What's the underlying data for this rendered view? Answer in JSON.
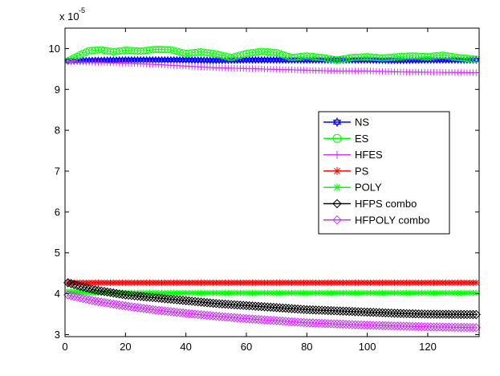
{
  "chart_data": {
    "type": "line",
    "title": "",
    "xlabel": "",
    "ylabel": "",
    "y_multiplier_label": "x 10",
    "y_multiplier_exponent": "-5",
    "xlim": [
      0,
      137
    ],
    "ylim": [
      2.95,
      10.5
    ],
    "x_ticks": [
      0,
      20,
      40,
      60,
      80,
      100,
      120
    ],
    "y_ticks": [
      3,
      4,
      5,
      6,
      7,
      8,
      9,
      10
    ],
    "grid": false,
    "legend_position": "right",
    "x_count": 136,
    "series": [
      {
        "name": "NS",
        "color": "#0000ff",
        "marker": "hexagram",
        "points": [
          [
            1,
            9.7
          ],
          [
            10,
            9.71
          ],
          [
            20,
            9.72
          ],
          [
            30,
            9.72
          ],
          [
            40,
            9.72
          ],
          [
            50,
            9.71
          ],
          [
            60,
            9.72
          ],
          [
            70,
            9.72
          ],
          [
            80,
            9.72
          ],
          [
            90,
            9.72
          ],
          [
            100,
            9.72
          ],
          [
            110,
            9.71
          ],
          [
            120,
            9.72
          ],
          [
            136,
            9.72
          ]
        ]
      },
      {
        "name": "ES",
        "color": "#00ff00",
        "marker": "circle",
        "points": [
          [
            1,
            9.7
          ],
          [
            5,
            9.85
          ],
          [
            8,
            9.95
          ],
          [
            12,
            9.97
          ],
          [
            16,
            9.92
          ],
          [
            20,
            9.96
          ],
          [
            25,
            9.94
          ],
          [
            30,
            9.98
          ],
          [
            35,
            9.97
          ],
          [
            40,
            9.88
          ],
          [
            45,
            9.92
          ],
          [
            50,
            9.87
          ],
          [
            55,
            9.78
          ],
          [
            60,
            9.88
          ],
          [
            65,
            9.93
          ],
          [
            70,
            9.9
          ],
          [
            75,
            9.78
          ],
          [
            80,
            9.82
          ],
          [
            85,
            9.78
          ],
          [
            90,
            9.72
          ],
          [
            95,
            9.78
          ],
          [
            100,
            9.8
          ],
          [
            105,
            9.77
          ],
          [
            110,
            9.8
          ],
          [
            115,
            9.82
          ],
          [
            120,
            9.8
          ],
          [
            125,
            9.84
          ],
          [
            130,
            9.78
          ],
          [
            136,
            9.74
          ]
        ]
      },
      {
        "name": "HFES",
        "color": "#cc33ff",
        "marker": "plus",
        "points": [
          [
            1,
            9.68
          ],
          [
            10,
            9.66
          ],
          [
            20,
            9.64
          ],
          [
            30,
            9.61
          ],
          [
            40,
            9.57
          ],
          [
            50,
            9.53
          ],
          [
            60,
            9.51
          ],
          [
            70,
            9.49
          ],
          [
            80,
            9.47
          ],
          [
            90,
            9.45
          ],
          [
            100,
            9.45
          ],
          [
            110,
            9.43
          ],
          [
            120,
            9.42
          ],
          [
            136,
            9.41
          ]
        ]
      },
      {
        "name": "PS",
        "color": "#ff0000",
        "marker": "asterisk",
        "points": [
          [
            1,
            4.27
          ],
          [
            136,
            4.27
          ]
        ]
      },
      {
        "name": "POLY",
        "color": "#00ff00",
        "marker": "asterisk",
        "points": [
          [
            1,
            4.05
          ],
          [
            10,
            4.03
          ],
          [
            20,
            4.02
          ],
          [
            136,
            4.02
          ]
        ]
      },
      {
        "name": "HFPS combo",
        "color": "#000000",
        "marker": "diamond",
        "points": [
          [
            1,
            4.27
          ],
          [
            5,
            4.18
          ],
          [
            10,
            4.09
          ],
          [
            20,
            3.97
          ],
          [
            30,
            3.9
          ],
          [
            40,
            3.83
          ],
          [
            50,
            3.76
          ],
          [
            60,
            3.71
          ],
          [
            70,
            3.66
          ],
          [
            80,
            3.61
          ],
          [
            90,
            3.58
          ],
          [
            100,
            3.55
          ],
          [
            110,
            3.52
          ],
          [
            120,
            3.5
          ],
          [
            136,
            3.49
          ]
        ]
      },
      {
        "name": "HFPOLY combo",
        "color": "#cc33ff",
        "marker": "diamond",
        "points": [
          [
            1,
            3.97
          ],
          [
            5,
            3.9
          ],
          [
            10,
            3.82
          ],
          [
            20,
            3.7
          ],
          [
            30,
            3.6
          ],
          [
            40,
            3.52
          ],
          [
            50,
            3.45
          ],
          [
            60,
            3.39
          ],
          [
            70,
            3.34
          ],
          [
            80,
            3.29
          ],
          [
            90,
            3.26
          ],
          [
            100,
            3.23
          ],
          [
            110,
            3.21
          ],
          [
            120,
            3.19
          ],
          [
            136,
            3.17
          ]
        ]
      }
    ]
  }
}
